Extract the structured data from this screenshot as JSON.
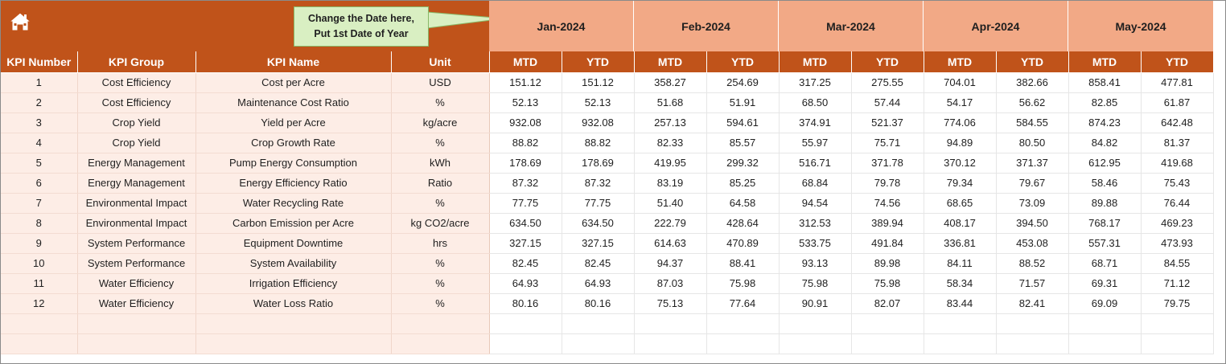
{
  "callout": {
    "line1": "Change the Date here,",
    "line2": "Put 1st Date of Year"
  },
  "months": [
    "Jan-2024",
    "Feb-2024",
    "Mar-2024",
    "Apr-2024",
    "May-2024"
  ],
  "headers": {
    "kpi_number": "KPI Number",
    "kpi_group": "KPI Group",
    "kpi_name": "KPI Name",
    "unit": "Unit",
    "mtd": "MTD",
    "ytd": "YTD"
  },
  "colors": {
    "header": "#C0531A",
    "month_band": "#F2A986",
    "left_fill": "#FDEDE6",
    "callout": "#D9EFC2"
  },
  "icons": {
    "home": "home-icon"
  },
  "rows": [
    {
      "n": "1",
      "group": "Cost Efficiency",
      "name": "Cost per Acre",
      "unit": "USD",
      "v": [
        "151.12",
        "151.12",
        "358.27",
        "254.69",
        "317.25",
        "275.55",
        "704.01",
        "382.66",
        "858.41",
        "477.81"
      ]
    },
    {
      "n": "2",
      "group": "Cost Efficiency",
      "name": "Maintenance Cost Ratio",
      "unit": "%",
      "v": [
        "52.13",
        "52.13",
        "51.68",
        "51.91",
        "68.50",
        "57.44",
        "54.17",
        "56.62",
        "82.85",
        "61.87"
      ]
    },
    {
      "n": "3",
      "group": "Crop Yield",
      "name": "Yield per Acre",
      "unit": "kg/acre",
      "v": [
        "932.08",
        "932.08",
        "257.13",
        "594.61",
        "374.91",
        "521.37",
        "774.06",
        "584.55",
        "874.23",
        "642.48"
      ]
    },
    {
      "n": "4",
      "group": "Crop Yield",
      "name": "Crop Growth Rate",
      "unit": "%",
      "v": [
        "88.82",
        "88.82",
        "82.33",
        "85.57",
        "55.97",
        "75.71",
        "94.89",
        "80.50",
        "84.82",
        "81.37"
      ]
    },
    {
      "n": "5",
      "group": "Energy Management",
      "name": "Pump Energy Consumption",
      "unit": "kWh",
      "v": [
        "178.69",
        "178.69",
        "419.95",
        "299.32",
        "516.71",
        "371.78",
        "370.12",
        "371.37",
        "612.95",
        "419.68"
      ]
    },
    {
      "n": "6",
      "group": "Energy Management",
      "name": "Energy Efficiency Ratio",
      "unit": "Ratio",
      "v": [
        "87.32",
        "87.32",
        "83.19",
        "85.25",
        "68.84",
        "79.78",
        "79.34",
        "79.67",
        "58.46",
        "75.43"
      ]
    },
    {
      "n": "7",
      "group": "Environmental Impact",
      "name": "Water Recycling Rate",
      "unit": "%",
      "v": [
        "77.75",
        "77.75",
        "51.40",
        "64.58",
        "94.54",
        "74.56",
        "68.65",
        "73.09",
        "89.88",
        "76.44"
      ]
    },
    {
      "n": "8",
      "group": "Environmental Impact",
      "name": "Carbon Emission per Acre",
      "unit": "kg CO2/acre",
      "v": [
        "634.50",
        "634.50",
        "222.79",
        "428.64",
        "312.53",
        "389.94",
        "408.17",
        "394.50",
        "768.17",
        "469.23"
      ]
    },
    {
      "n": "9",
      "group": "System Performance",
      "name": "Equipment Downtime",
      "unit": "hrs",
      "v": [
        "327.15",
        "327.15",
        "614.63",
        "470.89",
        "533.75",
        "491.84",
        "336.81",
        "453.08",
        "557.31",
        "473.93"
      ]
    },
    {
      "n": "10",
      "group": "System Performance",
      "name": "System Availability",
      "unit": "%",
      "v": [
        "82.45",
        "82.45",
        "94.37",
        "88.41",
        "93.13",
        "89.98",
        "84.11",
        "88.52",
        "68.71",
        "84.55"
      ]
    },
    {
      "n": "11",
      "group": "Water Efficiency",
      "name": "Irrigation Efficiency",
      "unit": "%",
      "v": [
        "64.93",
        "64.93",
        "87.03",
        "75.98",
        "75.98",
        "75.98",
        "58.34",
        "71.57",
        "69.31",
        "71.12"
      ]
    },
    {
      "n": "12",
      "group": "Water Efficiency",
      "name": "Water Loss Ratio",
      "unit": "%",
      "v": [
        "80.16",
        "80.16",
        "75.13",
        "77.64",
        "90.91",
        "82.07",
        "83.44",
        "82.41",
        "69.09",
        "79.75"
      ]
    }
  ]
}
